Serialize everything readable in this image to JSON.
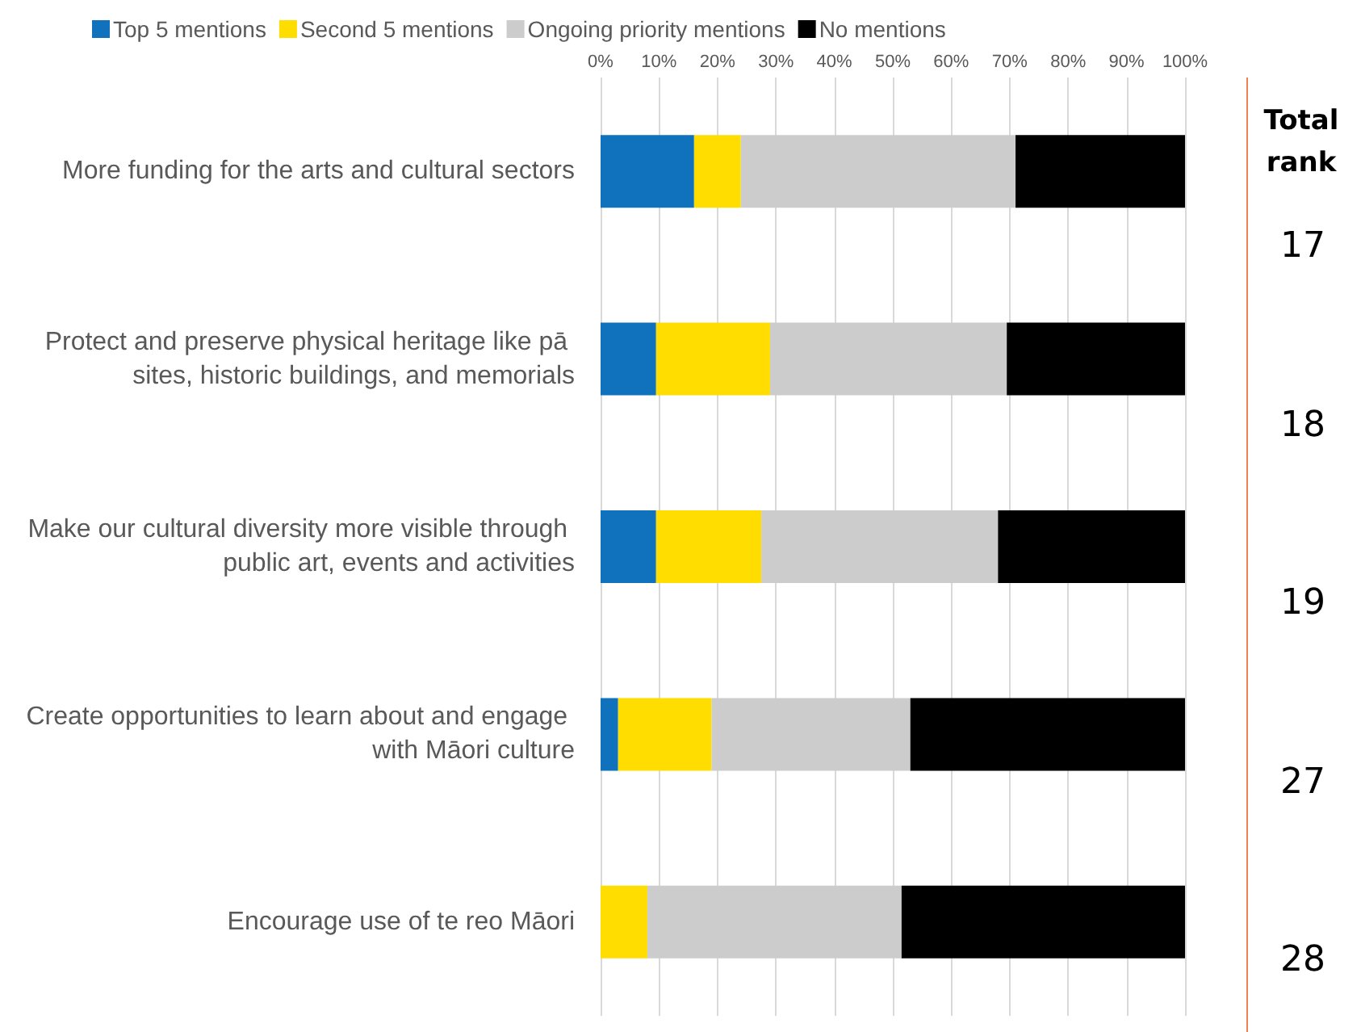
{
  "chart_data": {
    "type": "bar",
    "orientation": "horizontal",
    "stacked": true,
    "categories": [
      "More funding for the arts and cultural sectors",
      "Protect and preserve physical heritage like pā sites, historic buildings, and memorials",
      "Make our cultural diversity more visible through public art, events and activities",
      "Create opportunities to learn about and engage with Māori culture",
      "Encourage use of te reo Māori"
    ],
    "series": [
      {
        "name": "Top 5 mentions",
        "color": "#1072bd",
        "values": [
          16,
          9.5,
          9.5,
          3,
          0
        ]
      },
      {
        "name": "Second 5 mentions",
        "color": "#ffdd00",
        "values": [
          8,
          19.5,
          18,
          16,
          8
        ]
      },
      {
        "name": "Ongoing priority mentions",
        "color": "#cccccc",
        "values": [
          47,
          40.5,
          40.5,
          34,
          43.5
        ]
      },
      {
        "name": "No mentions",
        "color": "#000000",
        "values": [
          29,
          30.5,
          32,
          47,
          48.5
        ]
      }
    ],
    "xlim": [
      0,
      100
    ],
    "xticks": [
      {
        "value": 0,
        "label": "0%"
      },
      {
        "value": 10,
        "label": "10%"
      },
      {
        "value": 20,
        "label": "20%"
      },
      {
        "value": 30,
        "label": "30%"
      },
      {
        "value": 40,
        "label": "40%"
      },
      {
        "value": 50,
        "label": "50%"
      },
      {
        "value": 60,
        "label": "60%"
      },
      {
        "value": 70,
        "label": "70%"
      },
      {
        "value": 80,
        "label": "80%"
      },
      {
        "value": 90,
        "label": "90%"
      },
      {
        "value": 100,
        "label": "100%"
      }
    ],
    "grid": "x",
    "legend": "top left",
    "annotations": [
      "Total rank",
      "17",
      "18",
      "19",
      "27",
      "28"
    ]
  }
}
